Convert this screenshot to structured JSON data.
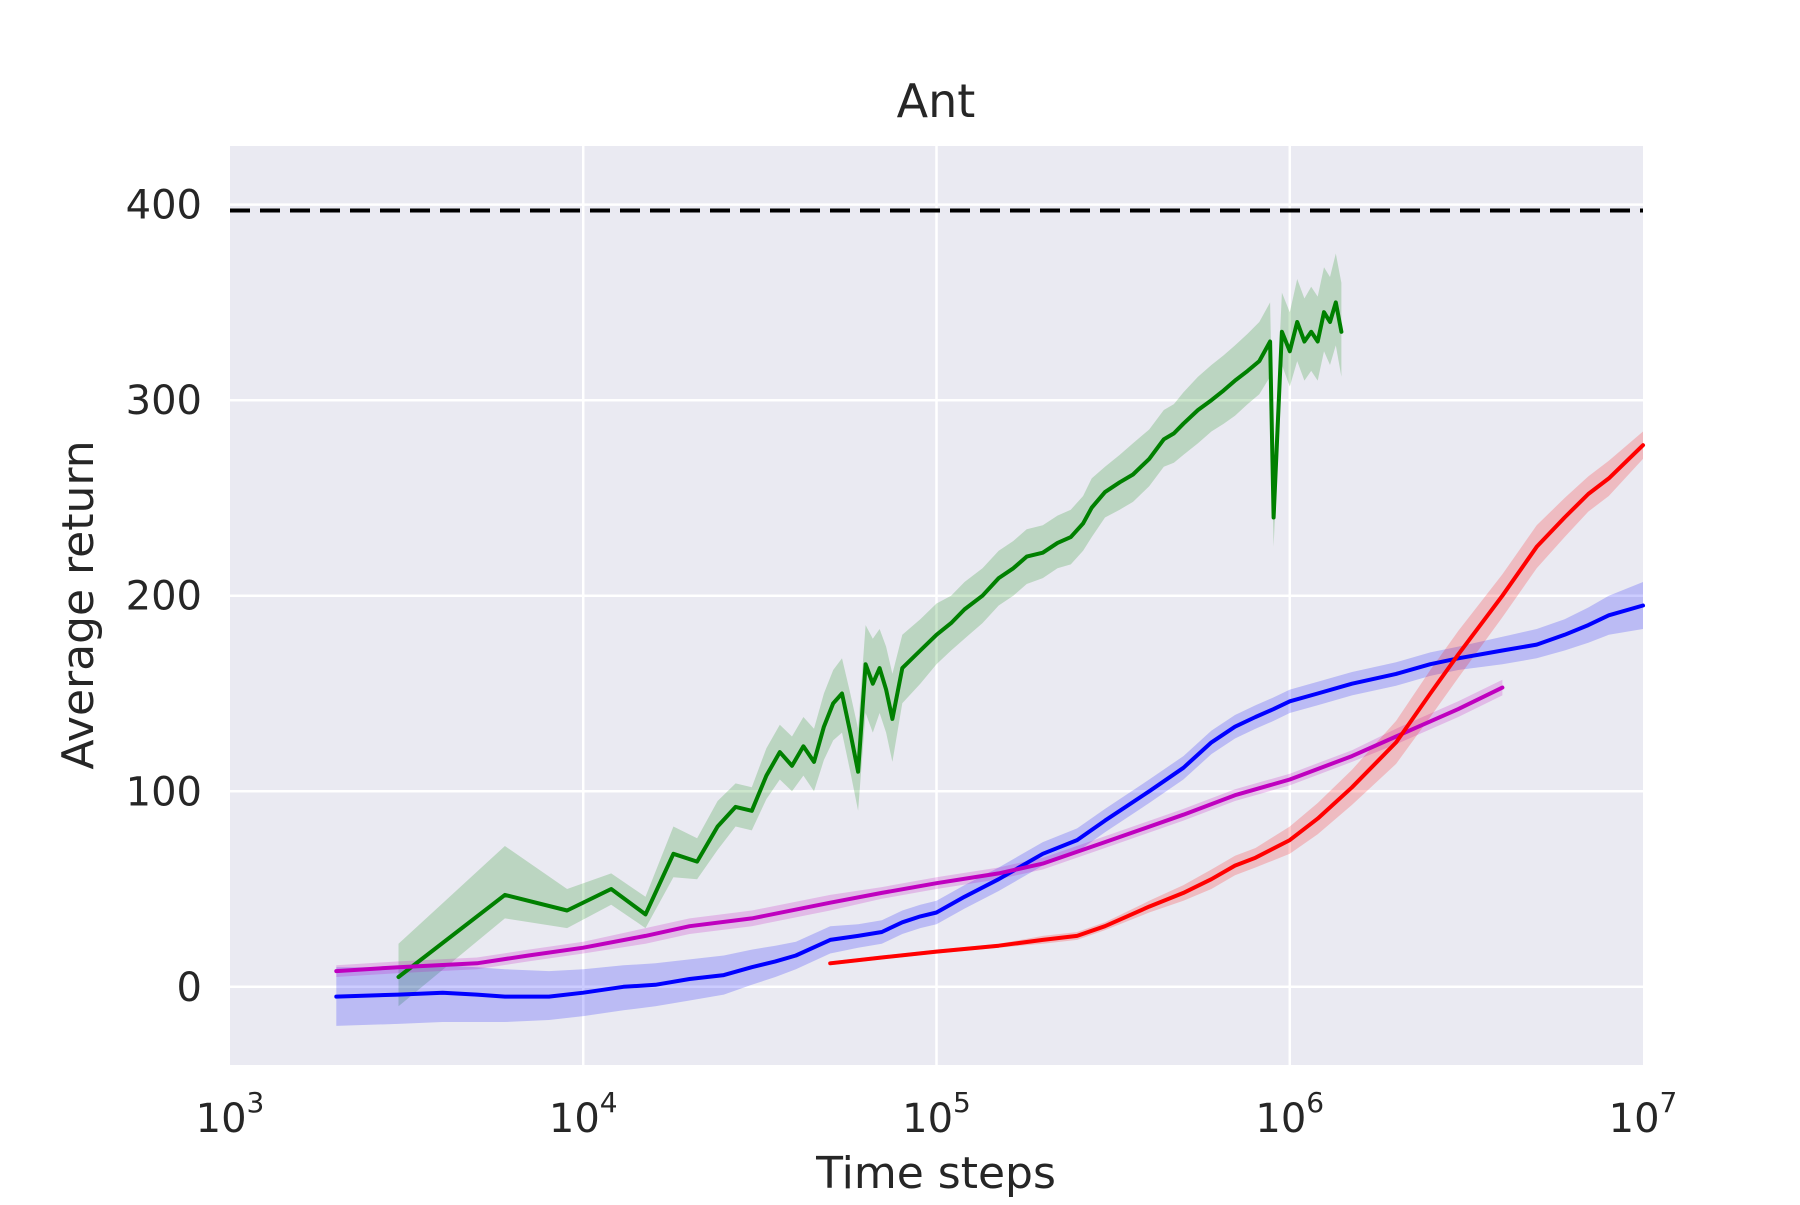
{
  "chart_data": {
    "type": "line",
    "title": "Ant",
    "xlabel": "Time steps",
    "ylabel": "Average return",
    "xscale": "log",
    "xlim": [
      1000,
      10000000
    ],
    "ylim": [
      -40,
      430
    ],
    "grid": true,
    "legend": "none",
    "x_ticks": [
      {
        "value": 1000,
        "base": "10",
        "exp": "3"
      },
      {
        "value": 10000,
        "base": "10",
        "exp": "4"
      },
      {
        "value": 100000,
        "base": "10",
        "exp": "5"
      },
      {
        "value": 1000000,
        "base": "10",
        "exp": "6"
      },
      {
        "value": 10000000,
        "base": "10",
        "exp": "7"
      }
    ],
    "y_ticks": [
      {
        "value": 0,
        "label": "0"
      },
      {
        "value": 100,
        "label": "100"
      },
      {
        "value": 200,
        "label": "200"
      },
      {
        "value": 300,
        "label": "300"
      },
      {
        "value": 400,
        "label": "400"
      }
    ],
    "reference_line": {
      "y": 397,
      "color": "#000000",
      "style": "dashed"
    },
    "series": [
      {
        "color": "#008000",
        "x": [
          3000,
          6000,
          9000,
          12000,
          15000,
          18000,
          21000,
          24000,
          27000,
          30000,
          33000,
          36000,
          39000,
          42000,
          45000,
          48000,
          51000,
          54000,
          57000,
          60000,
          63000,
          66000,
          69000,
          72000,
          75000,
          80000,
          90000,
          100000,
          110000,
          120000,
          135000,
          150000,
          165000,
          180000,
          200000,
          220000,
          240000,
          260000,
          275000,
          300000,
          330000,
          360000,
          400000,
          440000,
          470000,
          500000,
          550000,
          600000,
          650000,
          700000,
          760000,
          820000,
          880000,
          900000,
          950000,
          1000000,
          1050000,
          1100000,
          1150000,
          1200000,
          1250000,
          1300000,
          1350000,
          1400000
        ],
        "y": [
          5,
          47,
          39,
          50,
          37,
          68,
          64,
          82,
          92,
          90,
          108,
          120,
          113,
          123,
          115,
          133,
          145,
          150,
          130,
          110,
          165,
          155,
          163,
          152,
          137,
          163,
          172,
          180,
          186,
          193,
          200,
          209,
          214,
          220,
          222,
          227,
          230,
          237,
          245,
          253,
          258,
          262,
          270,
          280,
          283,
          288,
          295,
          300,
          305,
          310,
          315,
          320,
          330,
          240,
          335,
          325,
          340,
          330,
          335,
          330,
          345,
          340,
          350,
          335
        ],
        "band_low": [
          -10,
          35,
          30,
          42,
          30,
          56,
          55,
          70,
          82,
          80,
          96,
          106,
          100,
          108,
          100,
          116,
          126,
          130,
          110,
          90,
          140,
          130,
          140,
          130,
          115,
          145,
          155,
          165,
          172,
          178,
          186,
          195,
          200,
          206,
          209,
          214,
          216,
          223,
          230,
          240,
          244,
          248,
          256,
          266,
          268,
          272,
          278,
          284,
          288,
          292,
          298,
          303,
          312,
          225,
          318,
          307,
          320,
          310,
          315,
          310,
          325,
          318,
          328,
          312
        ],
        "band_high": [
          22,
          72,
          50,
          58,
          46,
          82,
          76,
          95,
          104,
          102,
          122,
          134,
          128,
          138,
          132,
          150,
          162,
          168,
          150,
          132,
          185,
          178,
          183,
          174,
          160,
          180,
          188,
          196,
          200,
          207,
          214,
          223,
          228,
          234,
          236,
          241,
          244,
          251,
          260,
          266,
          272,
          278,
          285,
          295,
          298,
          304,
          312,
          318,
          323,
          328,
          334,
          340,
          350,
          262,
          355,
          345,
          362,
          352,
          358,
          353,
          368,
          363,
          375,
          360
        ]
      },
      {
        "color": "#0000ff",
        "x": [
          2000,
          3000,
          4000,
          5000,
          6000,
          8000,
          10000,
          13000,
          16000,
          20000,
          25000,
          30000,
          35000,
          40000,
          50000,
          60000,
          70000,
          80000,
          90000,
          100000,
          120000,
          150000,
          200000,
          250000,
          300000,
          400000,
          500000,
          600000,
          700000,
          800000,
          900000,
          1000000,
          1200000,
          1500000,
          2000000,
          2500000,
          3000000,
          4000000,
          5000000,
          6000000,
          7000000,
          8000000,
          10000000
        ],
        "y": [
          -5,
          -4,
          -3,
          -4,
          -5,
          -5,
          -3,
          0,
          1,
          4,
          6,
          10,
          13,
          16,
          24,
          26,
          28,
          33,
          36,
          38,
          46,
          55,
          68,
          75,
          85,
          100,
          112,
          125,
          133,
          138,
          142,
          146,
          150,
          155,
          160,
          165,
          168,
          172,
          175,
          180,
          185,
          190,
          195
        ],
        "band_low": [
          -20,
          -19,
          -18,
          -18,
          -18,
          -17,
          -15,
          -12,
          -10,
          -7,
          -4,
          1,
          5,
          9,
          17,
          20,
          22,
          27,
          30,
          32,
          40,
          49,
          62,
          69,
          79,
          94,
          106,
          119,
          127,
          132,
          136,
          140,
          144,
          149,
          154,
          159,
          162,
          165,
          168,
          172,
          176,
          180,
          183
        ],
        "band_high": [
          10,
          10,
          11,
          10,
          9,
          8,
          9,
          11,
          12,
          14,
          16,
          19,
          21,
          23,
          31,
          32,
          34,
          39,
          42,
          44,
          52,
          61,
          74,
          81,
          91,
          106,
          118,
          131,
          139,
          144,
          148,
          152,
          156,
          161,
          166,
          171,
          174,
          179,
          183,
          188,
          194,
          200,
          207
        ]
      },
      {
        "color": "#bf00bf",
        "x": [
          2000,
          3000,
          5000,
          7000,
          10000,
          15000,
          20000,
          30000,
          50000,
          70000,
          100000,
          150000,
          200000,
          300000,
          500000,
          700000,
          1000000,
          1500000,
          2000000,
          3000000,
          4000000
        ],
        "y": [
          8,
          10,
          12,
          16,
          20,
          26,
          31,
          35,
          43,
          48,
          53,
          58,
          63,
          74,
          88,
          98,
          106,
          118,
          128,
          142,
          153
        ],
        "band_low": [
          5,
          7,
          9,
          13,
          17,
          22,
          27,
          31,
          39,
          45,
          50,
          55,
          60,
          71,
          85,
          95,
          103,
          115,
          124,
          138,
          149
        ],
        "band_high": [
          11,
          13,
          15,
          19,
          23,
          30,
          35,
          39,
          47,
          51,
          56,
          61,
          66,
          77,
          91,
          101,
          109,
          121,
          132,
          146,
          157
        ]
      },
      {
        "color": "#ff0000",
        "x": [
          50000,
          70000,
          100000,
          150000,
          200000,
          250000,
          300000,
          400000,
          500000,
          600000,
          700000,
          800000,
          1000000,
          1200000,
          1500000,
          2000000,
          2500000,
          3000000,
          4000000,
          5000000,
          6000000,
          7000000,
          8000000,
          10000000
        ],
        "y": [
          12,
          15,
          18,
          21,
          24,
          26,
          31,
          41,
          48,
          55,
          62,
          66,
          75,
          86,
          102,
          125,
          150,
          170,
          200,
          225,
          240,
          252,
          260,
          277
        ],
        "band_low": [
          11,
          14,
          17,
          20,
          22,
          24,
          29,
          38,
          44,
          50,
          57,
          61,
          68,
          78,
          93,
          114,
          138,
          158,
          189,
          214,
          230,
          243,
          251,
          270
        ],
        "band_high": [
          13,
          16,
          19,
          22,
          26,
          28,
          33,
          44,
          52,
          60,
          67,
          71,
          82,
          94,
          111,
          136,
          162,
          182,
          211,
          236,
          250,
          261,
          269,
          284
        ]
      }
    ]
  }
}
